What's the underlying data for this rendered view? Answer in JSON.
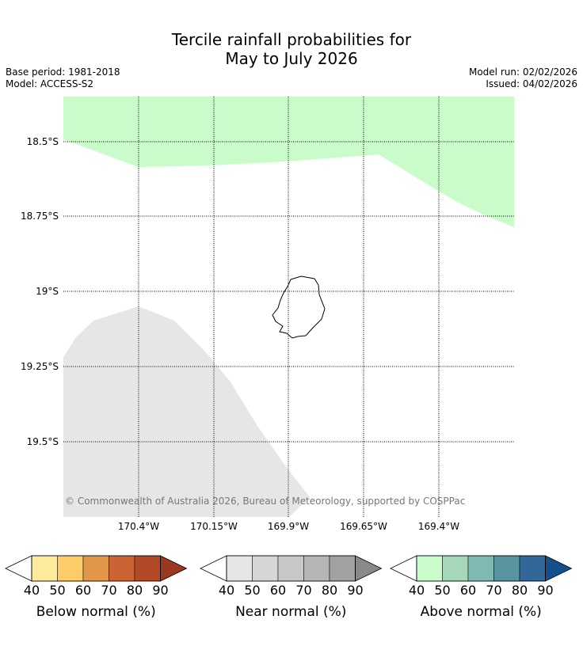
{
  "title_line1": "Tercile rainfall probabilities for",
  "title_line2": "May to July 2026",
  "meta_left": [
    "Base period: 1981-2018",
    "Model: ACCESS-S2"
  ],
  "meta_right": [
    "Model run: 02/02/2026",
    "Issued: 04/02/2026"
  ],
  "map": {
    "lat_labels": [
      "18.5°S",
      "18.75°S",
      "19°S",
      "19.25°S",
      "19.5°S"
    ],
    "lon_labels": [
      "170.4°W",
      "170.15°W",
      "169.9°W",
      "169.65°W",
      "169.4°W"
    ],
    "copyright": "© Commonwealth of Australia 2026, Bureau of Meteorology, supported by COSPPac",
    "regions": [
      {
        "category": "Above normal",
        "bin": "40–50",
        "color": "#c9fcca"
      },
      {
        "category": "Near normal",
        "bin": "40–50",
        "color": "#e6e6e6"
      }
    ],
    "island_color": "#000000"
  },
  "legends": [
    {
      "label": "Below normal (%)",
      "ticks": [
        "40",
        "50",
        "60",
        "70",
        "80",
        "90"
      ],
      "colors": [
        "#ffeb9c",
        "#fdcb67",
        "#e1964a",
        "#cd6232",
        "#b34a27"
      ],
      "arrow_color": "#9a3822"
    },
    {
      "label": "Near normal (%)",
      "ticks": [
        "40",
        "50",
        "60",
        "70",
        "80",
        "90"
      ],
      "colors": [
        "#e6e6e6",
        "#d6d6d6",
        "#c8c8c8",
        "#b5b5b5",
        "#a1a1a1"
      ],
      "arrow_color": "#898989"
    },
    {
      "label": "Above normal (%)",
      "ticks": [
        "40",
        "50",
        "60",
        "70",
        "80",
        "90"
      ],
      "colors": [
        "#c9fcca",
        "#a4d8b9",
        "#80b9b3",
        "#5b94a1",
        "#336799"
      ],
      "arrow_color": "#16508c"
    }
  ]
}
